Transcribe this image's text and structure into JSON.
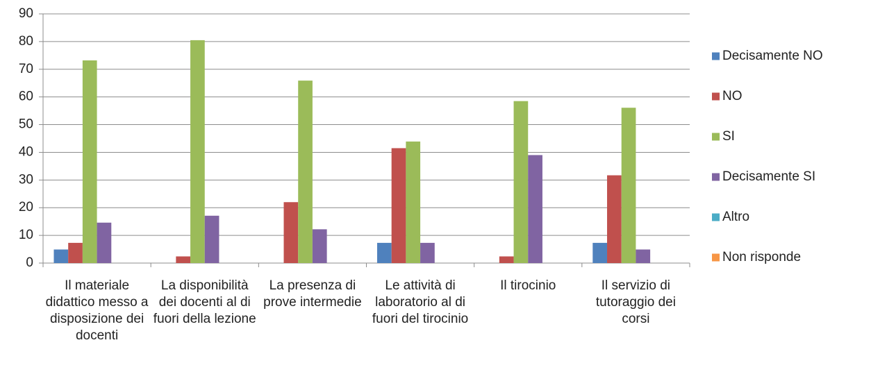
{
  "chart_data": {
    "type": "bar",
    "categories": [
      "Il materiale didattico messo a disposizione dei docenti",
      "La disponibilità dei docenti al di fuori della lezione",
      "La presenza di prove intermedie",
      "Le attività di laboratorio al di fuori del tirocinio",
      "Il tirocinio",
      "Il servizio di tutoraggio dei corsi"
    ],
    "series": [
      {
        "name": "Decisamente NO",
        "color": "#4f81bd",
        "values": [
          4.9,
          0,
          0,
          7.3,
          0,
          7.3
        ]
      },
      {
        "name": "NO",
        "color": "#c0504d",
        "values": [
          7.3,
          2.4,
          22,
          41.5,
          2.4,
          31.7
        ]
      },
      {
        "name": "SI",
        "color": "#9bbb59",
        "values": [
          73.2,
          80.5,
          65.9,
          43.9,
          58.5,
          56.1
        ]
      },
      {
        "name": "Decisamente SI",
        "color": "#8064a2",
        "values": [
          14.6,
          17.1,
          12.2,
          7.3,
          39,
          4.9
        ]
      },
      {
        "name": "Altro",
        "color": "#4bacc6",
        "values": [
          0,
          0,
          0,
          0,
          0,
          0
        ]
      },
      {
        "name": "Non risponde",
        "color": "#f79646",
        "values": [
          0,
          0,
          0,
          0,
          0,
          0
        ]
      }
    ],
    "ylim": [
      0,
      90
    ],
    "yticks": [
      0,
      10,
      20,
      30,
      40,
      50,
      60,
      70,
      80,
      90
    ],
    "grid": true,
    "legend": "right"
  }
}
